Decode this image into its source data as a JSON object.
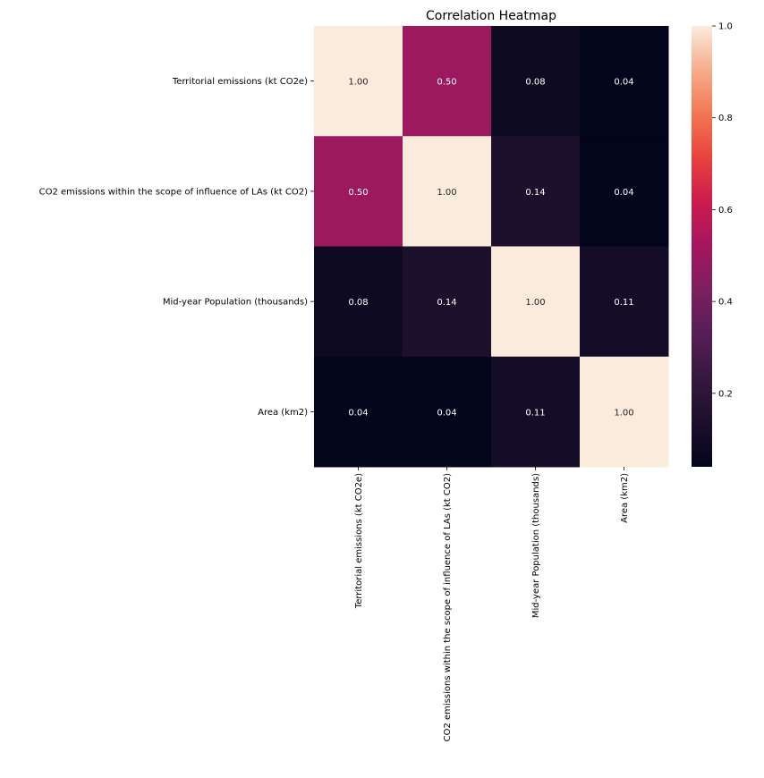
{
  "chart_data": {
    "type": "heatmap",
    "title": "Correlation Heatmap",
    "xlabel": "",
    "ylabel": "",
    "rows": [
      "Territorial emissions (kt CO2e)",
      "CO2 emissions within the scope of influence of LAs (kt CO2)",
      "Mid-year Population (thousands)",
      "Area (km2)"
    ],
    "columns": [
      "Territorial emissions (kt CO2e)",
      "CO2 emissions within the scope of influence of LAs (kt CO2)",
      "Mid-year Population (thousands)",
      "Area (km2)"
    ],
    "values": [
      [
        1.0,
        0.5,
        0.08,
        0.04
      ],
      [
        0.5,
        1.0,
        0.14,
        0.04
      ],
      [
        0.08,
        0.14,
        1.0,
        0.11
      ],
      [
        0.04,
        0.04,
        0.11,
        1.0
      ]
    ],
    "value_format": "0.00",
    "colormap": "rocket",
    "colorbar": {
      "range": [
        0.04,
        1.0
      ],
      "ticks": [
        0.2,
        0.4,
        0.6,
        0.8,
        1.0
      ],
      "tick_labels": [
        "0.2",
        "0.4",
        "0.6",
        "0.8",
        "1.0"
      ]
    }
  }
}
